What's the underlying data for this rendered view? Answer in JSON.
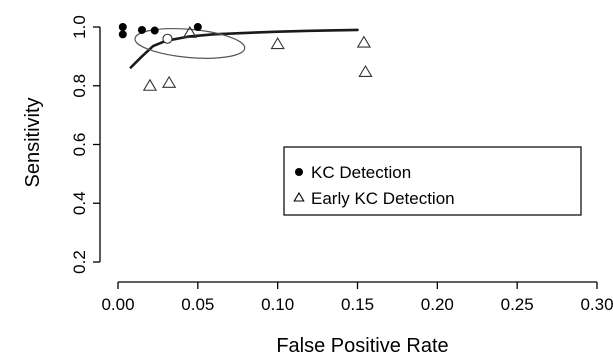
{
  "chart_data": {
    "type": "scatter",
    "title": "",
    "xlabel": "False Positive Rate",
    "ylabel": "Sensitivity",
    "xlim": [
      0.0,
      0.3
    ],
    "ylim": [
      0.2,
      1.0
    ],
    "xticks": [
      "0.00",
      "0.05",
      "0.10",
      "0.15",
      "0.20",
      "0.25",
      "0.30"
    ],
    "yticks": [
      "0.2",
      "0.4",
      "0.6",
      "0.8",
      "1.0"
    ],
    "grid": false,
    "legend_position": "center-right",
    "series": [
      {
        "name": "KC Detection",
        "marker": "filled-circle",
        "x": [
          0.003,
          0.003,
          0.015,
          0.023,
          0.05
        ],
        "y": [
          1.0,
          0.975,
          0.99,
          0.988,
          1.0
        ]
      },
      {
        "name": "Early KC Detection",
        "marker": "open-triangle",
        "x": [
          0.02,
          0.032,
          0.045,
          0.1,
          0.154,
          0.155
        ],
        "y": [
          0.798,
          0.808,
          0.978,
          0.94,
          0.945,
          0.845
        ]
      }
    ],
    "summary_point": {
      "x": 0.031,
      "y": 0.96,
      "marker": "open-circle"
    },
    "sroc_curve": {
      "x": [
        0.008,
        0.015,
        0.022,
        0.03,
        0.045,
        0.06,
        0.08,
        0.1,
        0.12,
        0.15
      ],
      "y": [
        0.862,
        0.9,
        0.935,
        0.953,
        0.968,
        0.975,
        0.98,
        0.984,
        0.987,
        0.99
      ]
    },
    "confidence_ellipse": {
      "cx": 0.045,
      "cy": 0.944,
      "rx": 0.0345,
      "ry": 0.048,
      "rotate_deg": 5
    }
  }
}
